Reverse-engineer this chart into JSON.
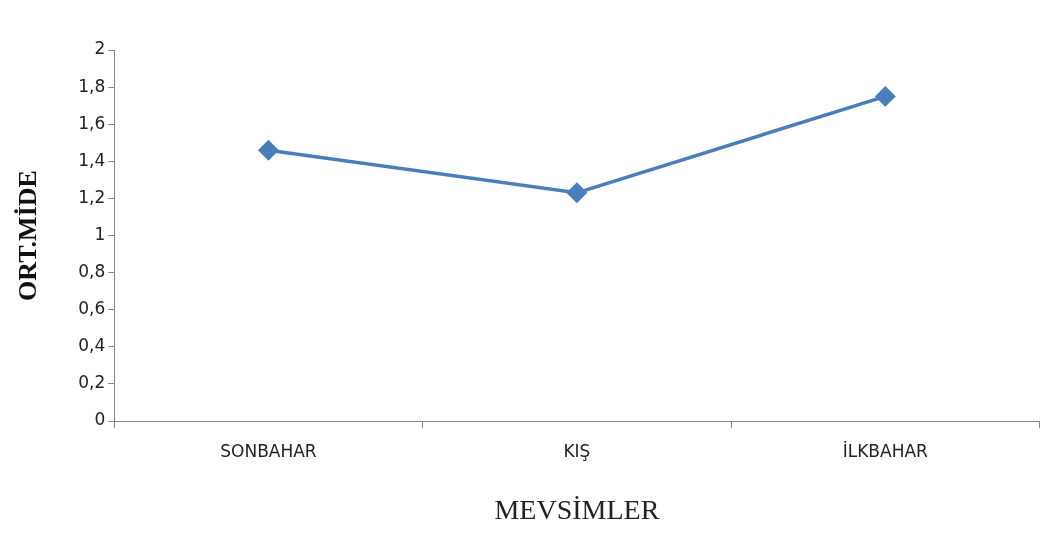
{
  "chart_data": {
    "type": "line",
    "xlabel": "MEVSİMLER",
    "ylabel": "ORT.MİDE",
    "categories": [
      "SONBAHAR",
      "KIŞ",
      "İLKBAHAR"
    ],
    "series": [
      {
        "color": "#4a7ebb",
        "values": [
          1.46,
          1.23,
          1.75
        ]
      }
    ],
    "ylim": [
      0,
      2
    ],
    "yticks": [
      0,
      {
        "value": 0.2,
        "label": "0,2"
      },
      {
        "value": 0.4,
        "label": "0,4"
      },
      {
        "value": 0.6,
        "label": "0,6"
      },
      {
        "value": 0.8,
        "label": "0,8"
      },
      1,
      {
        "value": 1.2,
        "label": "1,2"
      },
      {
        "value": 1.4,
        "label": "1,4"
      },
      {
        "value": 1.6,
        "label": "1,6"
      },
      {
        "value": 1.8,
        "label": "1,8"
      },
      2
    ],
    "grid": false,
    "legend": false,
    "marker": "diamond",
    "line_style": "solid"
  }
}
